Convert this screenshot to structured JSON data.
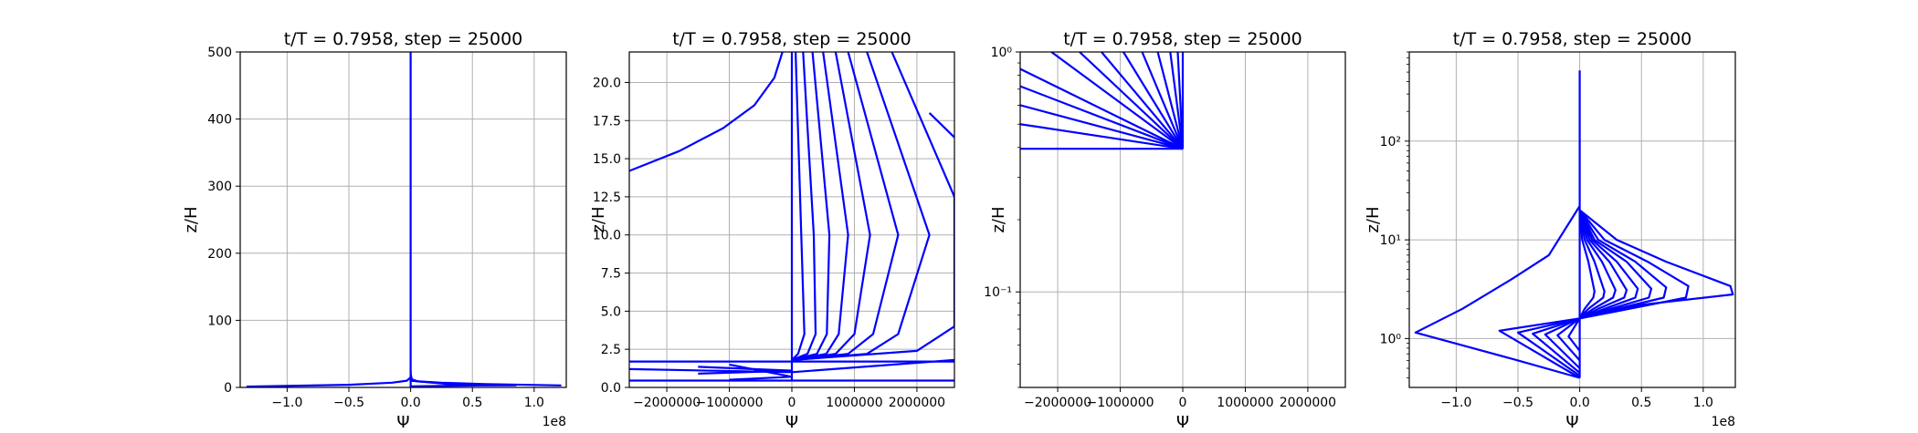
{
  "colors": {
    "line": "#0000ff",
    "grid": "#b0b0b0",
    "axes": "#000000",
    "background": "#ffffff"
  },
  "chart_data": [
    {
      "type": "line",
      "title": "t/T = 0.7958, step = 25000",
      "xlabel": "Ψ",
      "ylabel": "z/H",
      "xscale": "linear",
      "yscale": "linear",
      "xlim": [
        -138000000.0,
        126000000.0
      ],
      "ylim": [
        0,
        500
      ],
      "grid": true,
      "offset_text": "1e8",
      "xticks": [
        -100000000.0,
        -50000000.0,
        0,
        50000000.0,
        100000000.0
      ],
      "xtick_labels": [
        "−1.0",
        "−0.5",
        "0.0",
        "0.5",
        "1.0"
      ],
      "yticks": [
        0,
        100,
        200,
        300,
        400,
        500
      ],
      "ytick_labels": [
        "0",
        "100",
        "200",
        "300",
        "400",
        "500"
      ],
      "series": [
        {
          "x": [
            0,
            0
          ],
          "y": [
            0.45,
            500
          ]
        },
        {
          "x": [
            -133000000.0,
            -50000000.0,
            -15000000.0,
            -3000000.0,
            0,
            0
          ],
          "y": [
            1.2,
            4,
            7,
            10,
            15,
            25
          ]
        },
        {
          "x": [
            122000000.0,
            60000000.0,
            25000000.0,
            6000000.0,
            1000000.0,
            0
          ],
          "y": [
            3.0,
            5,
            7,
            9,
            12,
            20
          ]
        },
        {
          "x": [
            0,
            55000000.0,
            85000000.0,
            30000000.0,
            0
          ],
          "y": [
            1.6,
            3.0,
            3.2,
            5,
            10
          ]
        }
      ]
    },
    {
      "type": "line",
      "title": "t/T = 0.7958, step = 25000",
      "xlabel": "Ψ",
      "ylabel": "z/H",
      "xscale": "linear",
      "yscale": "linear",
      "xlim": [
        -2600000,
        2600000
      ],
      "ylim": [
        0,
        22
      ],
      "grid": true,
      "xticks": [
        -2000000,
        -1000000,
        0,
        1000000,
        2000000
      ],
      "xtick_labels": [
        "−2000000",
        "−1000000",
        "0",
        "1000000",
        "2000000"
      ],
      "yticks": [
        0,
        2.5,
        5,
        7.5,
        10,
        12.5,
        15,
        17.5,
        20
      ],
      "ytick_labels": [
        "0.0",
        "2.5",
        "5.0",
        "7.5",
        "10.0",
        "12.5",
        "15.0",
        "17.5",
        "20.0"
      ],
      "series": [
        {
          "x": [
            -2600000,
            -1800000,
            -1100000,
            -600000,
            -280000,
            -150000
          ],
          "y": [
            14.2,
            15.5,
            17.0,
            18.5,
            20.3,
            22
          ]
        },
        {
          "x": [
            0,
            0
          ],
          "y": [
            0.4,
            22
          ]
        },
        {
          "x": [
            -2600000,
            2600000
          ],
          "y": [
            1.7,
            1.7
          ]
        },
        {
          "x": [
            -2600000,
            2600000
          ],
          "y": [
            0.45,
            0.45
          ]
        },
        {
          "x": [
            -2600000,
            0,
            2600000
          ],
          "y": [
            1.2,
            1.0,
            1.8
          ]
        },
        {
          "x": [
            -1000000,
            0,
            -1000000
          ],
          "y": [
            1.5,
            0.7,
            0.5
          ]
        },
        {
          "x": [
            -1500000,
            0,
            -1500000
          ],
          "y": [
            1.35,
            1.1,
            0.9
          ]
        },
        {
          "x": [
            60000,
            150000,
            200000,
            100000,
            0
          ],
          "y": [
            22,
            10,
            3.5,
            2.2,
            1.8
          ]
        },
        {
          "x": [
            180000,
            350000,
            380000,
            250000,
            0
          ],
          "y": [
            22,
            10,
            3.5,
            2.2,
            1.8
          ]
        },
        {
          "x": [
            330000,
            600000,
            560000,
            400000,
            0
          ],
          "y": [
            22,
            10,
            3.5,
            2.2,
            1.8
          ]
        },
        {
          "x": [
            500000,
            900000,
            750000,
            550000,
            0
          ],
          "y": [
            22,
            10,
            3.5,
            2.2,
            1.8
          ]
        },
        {
          "x": [
            700000,
            1250000,
            1000000,
            700000,
            0
          ],
          "y": [
            22,
            10,
            3.5,
            2.2,
            1.8
          ]
        },
        {
          "x": [
            900000,
            1700000,
            1300000,
            900000,
            0
          ],
          "y": [
            22,
            10,
            3.5,
            2.2,
            1.8
          ]
        },
        {
          "x": [
            1200000,
            2200000,
            1700000,
            1200000,
            0
          ],
          "y": [
            22,
            10,
            3.5,
            2.2,
            1.8
          ]
        },
        {
          "x": [
            1600000,
            2600000,
            2600000,
            2000000,
            0
          ],
          "y": [
            22,
            12.5,
            4.0,
            2.4,
            1.8
          ]
        },
        {
          "x": [
            2200000,
            2600000
          ],
          "y": [
            18,
            16.4
          ]
        }
      ]
    },
    {
      "type": "line",
      "title": "t/T = 0.7958, step = 25000",
      "xlabel": "Ψ",
      "ylabel": "z/H",
      "xscale": "linear",
      "yscale": "log",
      "xlim": [
        -2600000,
        2600000
      ],
      "ylim": [
        0.04,
        1.0
      ],
      "grid": true,
      "xticks": [
        -2000000,
        -1000000,
        0,
        1000000,
        2000000
      ],
      "xtick_labels": [
        "−2000000",
        "−1000000",
        "0",
        "1000000",
        "2000000"
      ],
      "yticks": [
        0.1,
        1.0
      ],
      "ytick_labels": [
        "10⁻¹",
        "10⁰"
      ],
      "series": [
        {
          "x": [
            0,
            0
          ],
          "y": [
            0.395,
            1.0
          ]
        },
        {
          "x": [
            -2600000,
            0
          ],
          "y": [
            0.395,
            0.395
          ]
        },
        {
          "x": [
            -2600000,
            0
          ],
          "y": [
            0.85,
            0.395
          ]
        },
        {
          "x": [
            -2600000,
            0
          ],
          "y": [
            0.72,
            0.395
          ]
        },
        {
          "x": [
            -2600000,
            0
          ],
          "y": [
            0.6,
            0.395
          ]
        },
        {
          "x": [
            -2600000,
            0
          ],
          "y": [
            0.5,
            0.395
          ]
        },
        {
          "x": [
            -2100000,
            0
          ],
          "y": [
            1.0,
            0.395
          ]
        },
        {
          "x": [
            -1650000,
            0
          ],
          "y": [
            1.0,
            0.395
          ]
        },
        {
          "x": [
            -1300000,
            0
          ],
          "y": [
            1.0,
            0.395
          ]
        },
        {
          "x": [
            -950000,
            0
          ],
          "y": [
            1.0,
            0.395
          ]
        },
        {
          "x": [
            -650000,
            0
          ],
          "y": [
            1.0,
            0.395
          ]
        },
        {
          "x": [
            -400000,
            0
          ],
          "y": [
            1.0,
            0.395
          ]
        },
        {
          "x": [
            -200000,
            0
          ],
          "y": [
            1.0,
            0.395
          ]
        },
        {
          "x": [
            -80000,
            0
          ],
          "y": [
            1.0,
            0.395
          ]
        }
      ]
    },
    {
      "type": "line",
      "title": "t/T = 0.7958, step = 25000",
      "xlabel": "Ψ",
      "ylabel": "z/H",
      "xscale": "linear",
      "yscale": "log",
      "xlim": [
        -138000000.0,
        126000000.0
      ],
      "ylim": [
        0.32,
        800
      ],
      "grid": true,
      "offset_text": "1e8",
      "xticks": [
        -100000000.0,
        -50000000.0,
        0,
        50000000.0,
        100000000.0
      ],
      "xtick_labels": [
        "−1.0",
        "−0.5",
        "0.0",
        "0.5",
        "1.0"
      ],
      "yticks": [
        1,
        10,
        100
      ],
      "ytick_labels": [
        "10⁰",
        "10¹",
        "10²"
      ],
      "series": [
        {
          "x": [
            0,
            0
          ],
          "y": [
            0.4,
            520
          ]
        },
        {
          "x": [
            0,
            -25000000.0,
            -55000000.0,
            -95000000.0,
            -133000000.0,
            -50000000.0,
            0,
            0
          ],
          "y": [
            22,
            7,
            4,
            2,
            1.15,
            0.6,
            0.4,
            0.4
          ]
        },
        {
          "x": [
            0,
            -65000000.0,
            0
          ],
          "y": [
            1.6,
            1.2,
            0.4
          ]
        },
        {
          "x": [
            0,
            -50000000.0,
            0
          ],
          "y": [
            1.6,
            1.15,
            0.42
          ]
        },
        {
          "x": [
            0,
            -38000000.0,
            0
          ],
          "y": [
            1.6,
            1.12,
            0.45
          ]
        },
        {
          "x": [
            0,
            -28000000.0,
            0
          ],
          "y": [
            1.6,
            1.1,
            0.5
          ]
        },
        {
          "x": [
            0,
            -18000000.0,
            0
          ],
          "y": [
            1.6,
            1.08,
            0.6
          ]
        },
        {
          "x": [
            0,
            -9000000.0,
            0
          ],
          "y": [
            1.6,
            1.05,
            0.75
          ]
        },
        {
          "x": [
            0,
            30000000.0,
            70000000.0,
            122000000.0,
            124000000.0,
            50000000.0,
            0
          ],
          "y": [
            20,
            10,
            6,
            3.4,
            2.8,
            2.2,
            1.6
          ]
        },
        {
          "x": [
            0,
            20000000.0,
            55000000.0,
            88000000.0,
            86000000.0,
            40000000.0,
            0
          ],
          "y": [
            20,
            10,
            6,
            3.4,
            2.6,
            2.0,
            1.6
          ]
        },
        {
          "x": [
            0,
            15000000.0,
            45000000.0,
            70000000.0,
            68000000.0,
            30000000.0,
            0
          ],
          "y": [
            20,
            10,
            6,
            3.3,
            2.6,
            2.0,
            1.6
          ]
        },
        {
          "x": [
            0,
            12000000.0,
            38000000.0,
            58000000.0,
            56000000.0,
            25000000.0,
            0
          ],
          "y": [
            20,
            10,
            6,
            3.2,
            2.6,
            2.0,
            1.6
          ]
        },
        {
          "x": [
            0,
            10000000.0,
            30000000.0,
            47000000.0,
            45000000.0,
            20000000.0,
            0
          ],
          "y": [
            20,
            10,
            6,
            3.2,
            2.6,
            2.0,
            1.6
          ]
        },
        {
          "x": [
            0,
            8000000.0,
            24000000.0,
            38000000.0,
            36000000.0,
            15000000.0,
            0
          ],
          "y": [
            20,
            10,
            6,
            3.1,
            2.6,
            2.0,
            1.6
          ]
        },
        {
          "x": [
            0,
            6000000.0,
            18000000.0,
            29000000.0,
            27000000.0,
            11000000.0,
            0
          ],
          "y": [
            20,
            10,
            6,
            3.1,
            2.6,
            2.0,
            1.6
          ]
        },
        {
          "x": [
            0,
            4000000.0,
            12000000.0,
            20000000.0,
            19000000.0,
            7000000.0,
            0
          ],
          "y": [
            20,
            10,
            6,
            3.0,
            2.6,
            2.0,
            1.6
          ]
        },
        {
          "x": [
            0,
            2000000.0,
            7000000.0,
            12000000.0,
            11000000.0,
            4000000.0,
            0
          ],
          "y": [
            20,
            10,
            6,
            3.0,
            2.6,
            2.0,
            1.6
          ]
        }
      ]
    }
  ]
}
